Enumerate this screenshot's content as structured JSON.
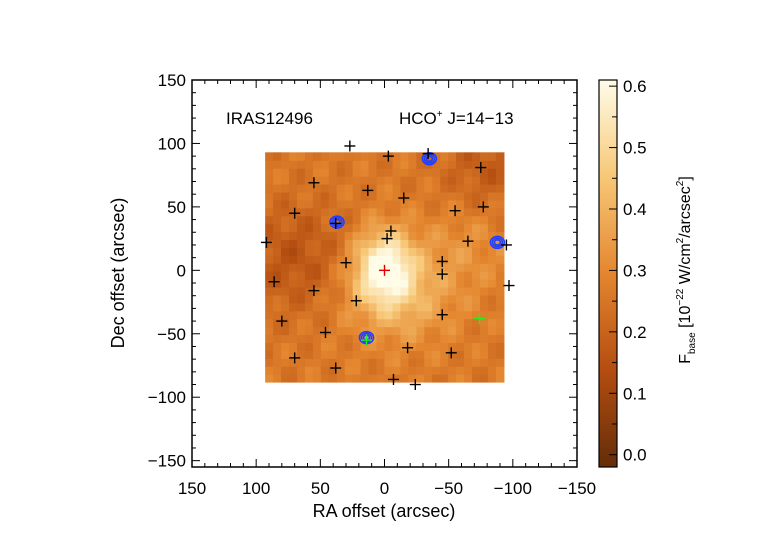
{
  "chart_data": {
    "type": "heatmap",
    "title_left": "IRAS12496",
    "title_right_main": "HCO",
    "title_right_sup": "+",
    "title_right_rest": " J=14−13",
    "xlabel": "RA offset (arcsec)",
    "ylabel": "Dec offset (arcsec)",
    "xlim": [
      150,
      -150
    ],
    "ylim": [
      -155,
      150
    ],
    "xticks": [
      150,
      100,
      50,
      0,
      -50,
      -100,
      -150
    ],
    "xtick_labels": [
      "150",
      "100",
      "50",
      "0",
      "−50",
      "−100",
      "−150"
    ],
    "yticks": [
      150,
      100,
      50,
      0,
      -50,
      -100,
      -150
    ],
    "ytick_labels": [
      "150",
      "100",
      "50",
      "0",
      "−50",
      "−100",
      "−150"
    ],
    "map_extent": {
      "ra": [
        93,
        -93
      ],
      "dec": [
        -88,
        93
      ]
    },
    "map_peak": {
      "ra": 0,
      "dec": 3
    },
    "colorbar": {
      "label_main": "F",
      "label_sub": "base",
      "label_unit_pre": " [10",
      "label_unit_exp": "−22",
      "label_unit_mid": " W/cm",
      "label_unit_exp2": "2",
      "label_unit_mid2": "/arcsec",
      "label_unit_exp3": "2",
      "label_unit_post": "]",
      "range": [
        -0.02,
        0.61
      ],
      "ticks": [
        0.0,
        0.1,
        0.2,
        0.3,
        0.4,
        0.5,
        0.6
      ],
      "tick_labels": [
        "0.0",
        "0.1",
        "0.2",
        "0.3",
        "0.4",
        "0.5",
        "0.6"
      ]
    },
    "detectors_black": [
      [
        92,
        22
      ],
      [
        86,
        -9
      ],
      [
        80,
        -40
      ],
      [
        70,
        -69
      ],
      [
        70,
        45
      ],
      [
        55,
        69
      ],
      [
        55,
        -16
      ],
      [
        46,
        -49
      ],
      [
        38,
        -77
      ],
      [
        38,
        37
      ],
      [
        30,
        6
      ],
      [
        22,
        -24
      ],
      [
        13,
        63
      ],
      [
        -7,
        -86
      ],
      [
        -24,
        -90
      ],
      [
        -18,
        -61
      ],
      [
        -5,
        31
      ],
      [
        -15,
        57
      ],
      [
        -2,
        25
      ],
      [
        -45,
        7
      ],
      [
        -34,
        92
      ],
      [
        -45,
        -3
      ],
      [
        -45,
        -35
      ],
      [
        -55,
        47
      ],
      [
        -52,
        -65
      ],
      [
        -65,
        23
      ],
      [
        -75,
        81
      ],
      [
        -77,
        50
      ],
      [
        -95,
        20
      ],
      [
        -97,
        -12
      ],
      [
        -3,
        90
      ],
      [
        27,
        98
      ]
    ],
    "detectors_green": [
      [
        14,
        -55
      ],
      [
        -74,
        -38
      ]
    ],
    "detector_red": [
      [
        0,
        0
      ]
    ],
    "blue_contours": [
      [
        37,
        38
      ],
      [
        -35,
        88
      ],
      [
        -88,
        22
      ],
      [
        14,
        -53
      ]
    ]
  }
}
